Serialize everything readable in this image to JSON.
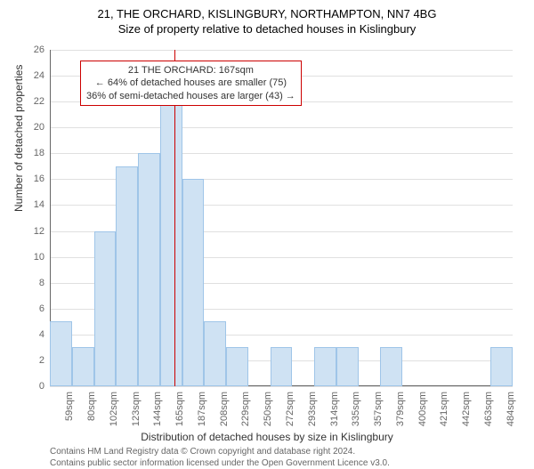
{
  "title": {
    "line1": "21, THE ORCHARD, KISLINGBURY, NORTHAMPTON, NN7 4BG",
    "line2": "Size of property relative to detached houses in Kislingbury"
  },
  "chart": {
    "type": "bar",
    "categories": [
      "59sqm",
      "80sqm",
      "102sqm",
      "123sqm",
      "144sqm",
      "165sqm",
      "187sqm",
      "208sqm",
      "229sqm",
      "250sqm",
      "272sqm",
      "293sqm",
      "314sqm",
      "335sqm",
      "357sqm",
      "379sqm",
      "400sqm",
      "421sqm",
      "442sqm",
      "463sqm",
      "484sqm"
    ],
    "values": [
      5,
      3,
      12,
      17,
      18,
      22,
      16,
      5,
      3,
      0,
      3,
      0,
      3,
      3,
      0,
      3,
      0,
      0,
      0,
      0,
      3
    ],
    "bar_color": "#cfe2f3",
    "bar_border_color": "#9fc5e8",
    "marker_value": "167sqm",
    "marker_color": "#cc0000",
    "background_color": "#ffffff",
    "grid_color": "#e0e0e0",
    "axis_line_color": "#666666",
    "tick_label_color": "#666666",
    "ylabel": "Number of detached properties",
    "xlabel": "Distribution of detached houses by size in Kislingbury",
    "ylim": [
      0,
      26
    ],
    "ytick_step": 2,
    "label_fontsize": 12,
    "tick_fontsize": 11,
    "bar_width": 1.0
  },
  "annotation": {
    "line1": "21 THE ORCHARD: 167sqm",
    "line2": "← 64% of detached houses are smaller (75)",
    "line3": "36% of semi-detached houses are larger (43) →",
    "border_color": "#cc0000"
  },
  "footer": {
    "line1": "Contains HM Land Registry data © Crown copyright and database right 2024.",
    "line2": "Contains public sector information licensed under the Open Government Licence v3.0."
  }
}
